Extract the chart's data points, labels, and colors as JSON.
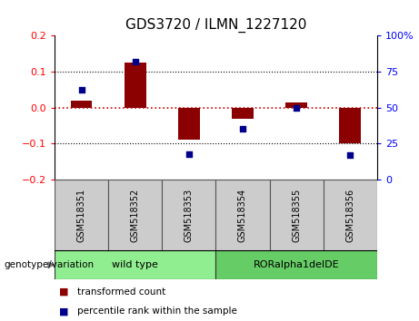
{
  "title": "GDS3720 / ILMN_1227120",
  "samples": [
    "GSM518351",
    "GSM518352",
    "GSM518353",
    "GSM518354",
    "GSM518355",
    "GSM518356"
  ],
  "transformed_count": [
    0.02,
    0.125,
    -0.09,
    -0.03,
    0.015,
    -0.1
  ],
  "percentile_rank": [
    62,
    82,
    18,
    35,
    50,
    17
  ],
  "groups": [
    {
      "label": "wild type",
      "samples": [
        0,
        1,
        2
      ],
      "color": "#90ee90"
    },
    {
      "label": "RORalpha1delDE",
      "samples": [
        3,
        4,
        5
      ],
      "color": "#66cc66"
    }
  ],
  "ylim_left": [
    -0.2,
    0.2
  ],
  "ylim_right": [
    0,
    100
  ],
  "yticks_left": [
    -0.2,
    -0.1,
    0.0,
    0.1,
    0.2
  ],
  "yticks_right": [
    0,
    25,
    50,
    75,
    100
  ],
  "bar_color": "#8b0000",
  "dot_color": "#00008b",
  "zero_line_color": "#cc0000",
  "grid_color": "#000000",
  "legend_bar_label": "transformed count",
  "legend_dot_label": "percentile rank within the sample",
  "xlabel_area_label": "genotype/variation",
  "bar_width": 0.4,
  "dot_size": 25
}
